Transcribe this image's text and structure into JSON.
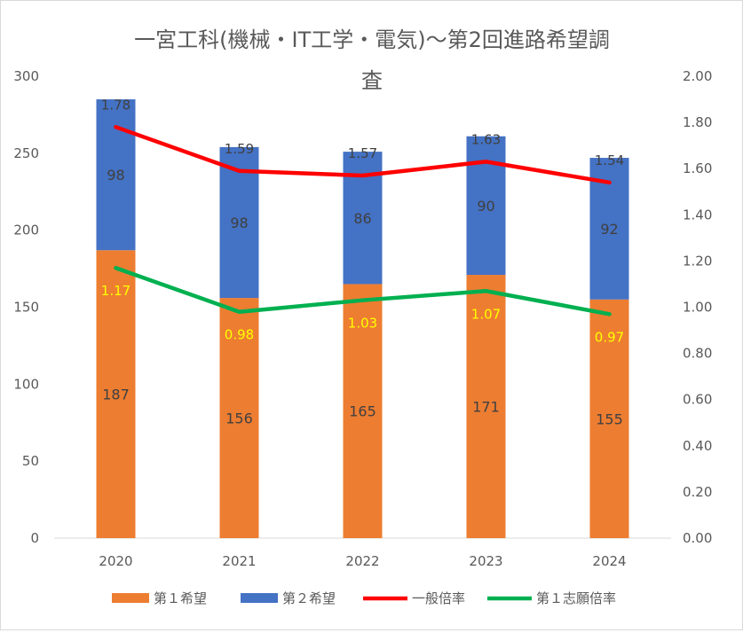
{
  "chart_data": {
    "type": "bar",
    "title_line1": "一宮工科(機械・IT工学・電気)〜第2回進路希望調",
    "title_line2": "査",
    "categories": [
      "2020",
      "2021",
      "2022",
      "2023",
      "2024"
    ],
    "series": [
      {
        "name": "第１希望",
        "kind": "bar",
        "axis": "left",
        "color": "#ED7D31",
        "values": [
          187,
          156,
          165,
          171,
          155
        ],
        "labels": [
          "187",
          "156",
          "165",
          "171",
          "155"
        ]
      },
      {
        "name": "第２希望",
        "kind": "bar",
        "axis": "left",
        "color": "#4472C4",
        "values": [
          98,
          98,
          86,
          90,
          92
        ],
        "labels": [
          "98",
          "98",
          "86",
          "90",
          "92"
        ]
      },
      {
        "name": "一般倍率",
        "kind": "line",
        "axis": "right",
        "color": "#FF0000",
        "values": [
          1.78,
          1.59,
          1.57,
          1.63,
          1.54
        ],
        "labels": [
          "1.78",
          "1.59",
          "1.57",
          "1.63",
          "1.54"
        ]
      },
      {
        "name": "第１志願倍率",
        "kind": "line",
        "axis": "right",
        "color": "#00B050",
        "values": [
          1.17,
          0.98,
          1.03,
          1.07,
          0.97
        ],
        "labels": [
          "1.17",
          "0.98",
          "1.03",
          "1.07",
          "0.97"
        ]
      }
    ],
    "stacked": true,
    "y_left": {
      "min": 0,
      "max": 300,
      "ticks": [
        "0",
        "50",
        "100",
        "150",
        "200",
        "250",
        "300"
      ]
    },
    "y_right": {
      "min": 0,
      "max": 2,
      "ticks": [
        "0.00",
        "0.20",
        "0.40",
        "0.60",
        "0.80",
        "1.00",
        "1.20",
        "1.40",
        "1.60",
        "1.80",
        "2.00"
      ]
    },
    "grid": false,
    "legend_position": "bottom",
    "label_colors": {
      "bar": "#404040",
      "line_green": "#FFFF00"
    }
  }
}
